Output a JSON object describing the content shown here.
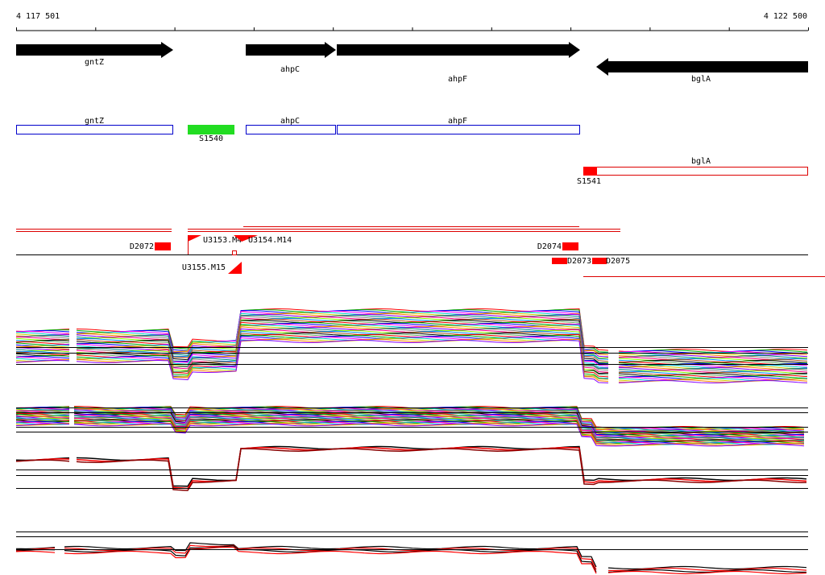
{
  "ruler": {
    "start": "4 117 501",
    "end": "4 122 500"
  },
  "genes_forward": [
    {
      "label": "gntZ"
    },
    {
      "label": "ahpC"
    },
    {
      "label": "ahpF"
    }
  ],
  "genes_reverse": [
    {
      "label": "bglA"
    }
  ],
  "transcripts_forward": [
    {
      "label": "gntZ"
    },
    {
      "label": "S1540"
    },
    {
      "label": "ahpC"
    },
    {
      "label": "ahpF"
    }
  ],
  "transcripts_reverse": [
    {
      "label": "bglA"
    },
    {
      "label": "S1541"
    }
  ],
  "features": [
    {
      "label": "D2072"
    },
    {
      "label": "U3153.M4"
    },
    {
      "label": "U3154.M14"
    },
    {
      "label": "U3155.M15"
    },
    {
      "label": "D2074"
    },
    {
      "label": "D2073"
    },
    {
      "label": "D2075"
    }
  ]
}
